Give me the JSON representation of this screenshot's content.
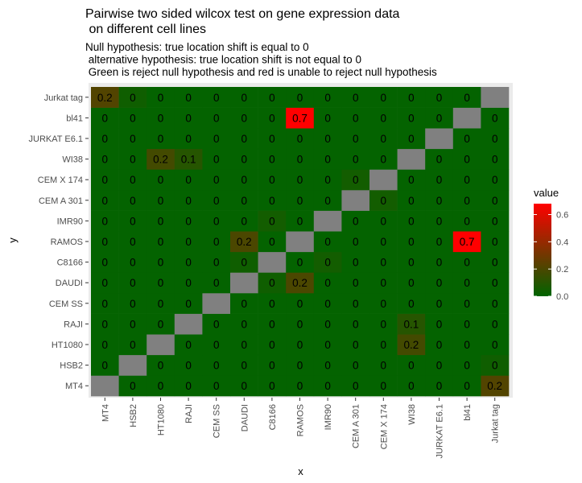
{
  "chart_data": {
    "type": "heatmap",
    "title_lines": [
      "Pairwise two sided wilcox test on gene expression data",
      " on different cell lines"
    ],
    "subtitle_lines": [
      "Null hypothesis: true location shift is equal to 0",
      " alternative hypothesis: true location shift is not equal to 0",
      " Green is reject null hypothesis and red is unable to reject null hypothesis"
    ],
    "xlabel": "x",
    "ylabel": "y",
    "categories": [
      "MT4",
      "HSB2",
      "HT1080",
      "RAJI",
      "CEM SS",
      "DAUDI",
      "C8166",
      "RAMOS",
      "IMR90",
      "CEM A 301",
      "CEM X 174",
      "WI38",
      "JURKAT E6.1",
      "bl41",
      "Jurkat tag"
    ],
    "values": [
      [
        null,
        0,
        0,
        0,
        0,
        0,
        0,
        0,
        0,
        0,
        0,
        0,
        0,
        0,
        0.2
      ],
      [
        0,
        null,
        0,
        0,
        0,
        0,
        0,
        0,
        0,
        0,
        0,
        0,
        0,
        0,
        0
      ],
      [
        0,
        0,
        null,
        0,
        0,
        0,
        0,
        0,
        0,
        0,
        0,
        0.2,
        0,
        0,
        0
      ],
      [
        0,
        0,
        0,
        null,
        0,
        0,
        0,
        0,
        0,
        0,
        0,
        0.1,
        0,
        0,
        0
      ],
      [
        0,
        0,
        0,
        0,
        null,
        0,
        0,
        0,
        0,
        0,
        0,
        0,
        0,
        0,
        0
      ],
      [
        0,
        0,
        0,
        0,
        0,
        null,
        0,
        0.2,
        0,
        0,
        0,
        0,
        0,
        0,
        0
      ],
      [
        0,
        0,
        0,
        0,
        0,
        0,
        null,
        0,
        0,
        0,
        0,
        0,
        0,
        0,
        0
      ],
      [
        0,
        0,
        0,
        0,
        0,
        0.2,
        0,
        null,
        0,
        0,
        0,
        0,
        0,
        0.7,
        0
      ],
      [
        0,
        0,
        0,
        0,
        0,
        0,
        0,
        0,
        null,
        0,
        0,
        0,
        0,
        0,
        0
      ],
      [
        0,
        0,
        0,
        0,
        0,
        0,
        0,
        0,
        0,
        null,
        0,
        0,
        0,
        0,
        0
      ],
      [
        0,
        0,
        0,
        0,
        0,
        0,
        0,
        0,
        0,
        0,
        null,
        0,
        0,
        0,
        0
      ],
      [
        0,
        0,
        0.2,
        0.1,
        0,
        0,
        0,
        0,
        0,
        0,
        0,
        null,
        0,
        0,
        0
      ],
      [
        0,
        0,
        0,
        0,
        0,
        0,
        0,
        0,
        0,
        0,
        0,
        0,
        null,
        0,
        0
      ],
      [
        0,
        0,
        0,
        0,
        0,
        0,
        0,
        0.7,
        0,
        0,
        0,
        0,
        0,
        null,
        0
      ],
      [
        0.2,
        0,
        0,
        0,
        0,
        0,
        0,
        0,
        0,
        0,
        0,
        0,
        0,
        0,
        null
      ]
    ],
    "fill_values": [
      [
        null,
        0.01,
        0.01,
        0.01,
        0.01,
        0.01,
        0.01,
        0.01,
        0.01,
        0.01,
        0.01,
        0.01,
        0.01,
        0.01,
        0.22
      ],
      [
        0.01,
        null,
        0.01,
        0.01,
        0.01,
        0.01,
        0.01,
        0.01,
        0.01,
        0.01,
        0.01,
        0.01,
        0.01,
        0.01,
        0.04
      ],
      [
        0.01,
        0.01,
        null,
        0.01,
        0.01,
        0.01,
        0.01,
        0.01,
        0.01,
        0.01,
        0.01,
        0.18,
        0.01,
        0.01,
        0.01
      ],
      [
        0.01,
        0.01,
        0.01,
        null,
        0.01,
        0.01,
        0.01,
        0.01,
        0.01,
        0.01,
        0.01,
        0.1,
        0.01,
        0.01,
        0.01
      ],
      [
        0.01,
        0.01,
        0.01,
        0.01,
        null,
        0.01,
        0.01,
        0.01,
        0.01,
        0.01,
        0.01,
        0.01,
        0.01,
        0.01,
        0.01
      ],
      [
        0.01,
        0.01,
        0.01,
        0.01,
        0.01,
        null,
        0.04,
        0.2,
        0.01,
        0.01,
        0.01,
        0.01,
        0.01,
        0.01,
        0.01
      ],
      [
        0.01,
        0.01,
        0.01,
        0.01,
        0.01,
        0.04,
        null,
        0.01,
        0.05,
        0.01,
        0.01,
        0.01,
        0.01,
        0.01,
        0.01
      ],
      [
        0.01,
        0.01,
        0.01,
        0.01,
        0.01,
        0.2,
        0.01,
        null,
        0.01,
        0.01,
        0.01,
        0.01,
        0.01,
        0.68,
        0.01
      ],
      [
        0.01,
        0.01,
        0.01,
        0.01,
        0.01,
        0.01,
        0.05,
        0.01,
        null,
        0.01,
        0.01,
        0.01,
        0.01,
        0.01,
        0.01
      ],
      [
        0.01,
        0.01,
        0.01,
        0.01,
        0.01,
        0.01,
        0.01,
        0.01,
        0.01,
        null,
        0.05,
        0.01,
        0.01,
        0.01,
        0.01
      ],
      [
        0.01,
        0.01,
        0.01,
        0.01,
        0.01,
        0.01,
        0.01,
        0.01,
        0.01,
        0.05,
        null,
        0.01,
        0.01,
        0.01,
        0.01
      ],
      [
        0.01,
        0.01,
        0.18,
        0.1,
        0.01,
        0.01,
        0.01,
        0.01,
        0.01,
        0.01,
        0.01,
        null,
        0.01,
        0.01,
        0.01
      ],
      [
        0.01,
        0.01,
        0.01,
        0.01,
        0.01,
        0.01,
        0.01,
        0.01,
        0.01,
        0.01,
        0.01,
        0.01,
        null,
        0.01,
        0.01
      ],
      [
        0.01,
        0.01,
        0.01,
        0.01,
        0.01,
        0.01,
        0.01,
        0.68,
        0.01,
        0.01,
        0.01,
        0.01,
        0.01,
        null,
        0.01
      ],
      [
        0.22,
        0.04,
        0.01,
        0.01,
        0.01,
        0.01,
        0.01,
        0.01,
        0.01,
        0.01,
        0.01,
        0.01,
        0.01,
        0.01,
        null
      ]
    ],
    "legend": {
      "title": "value",
      "ticks": [
        0.0,
        0.2,
        0.4,
        0.6
      ],
      "tick_labels": [
        "0.0",
        "0.2",
        "0.4",
        "0.6"
      ],
      "range": [
        0,
        0.68
      ],
      "low_color": "#006400",
      "high_color": "#ff0000",
      "placement": "right"
    },
    "na_color": "#808080",
    "panel_background": "#ebebeb"
  }
}
